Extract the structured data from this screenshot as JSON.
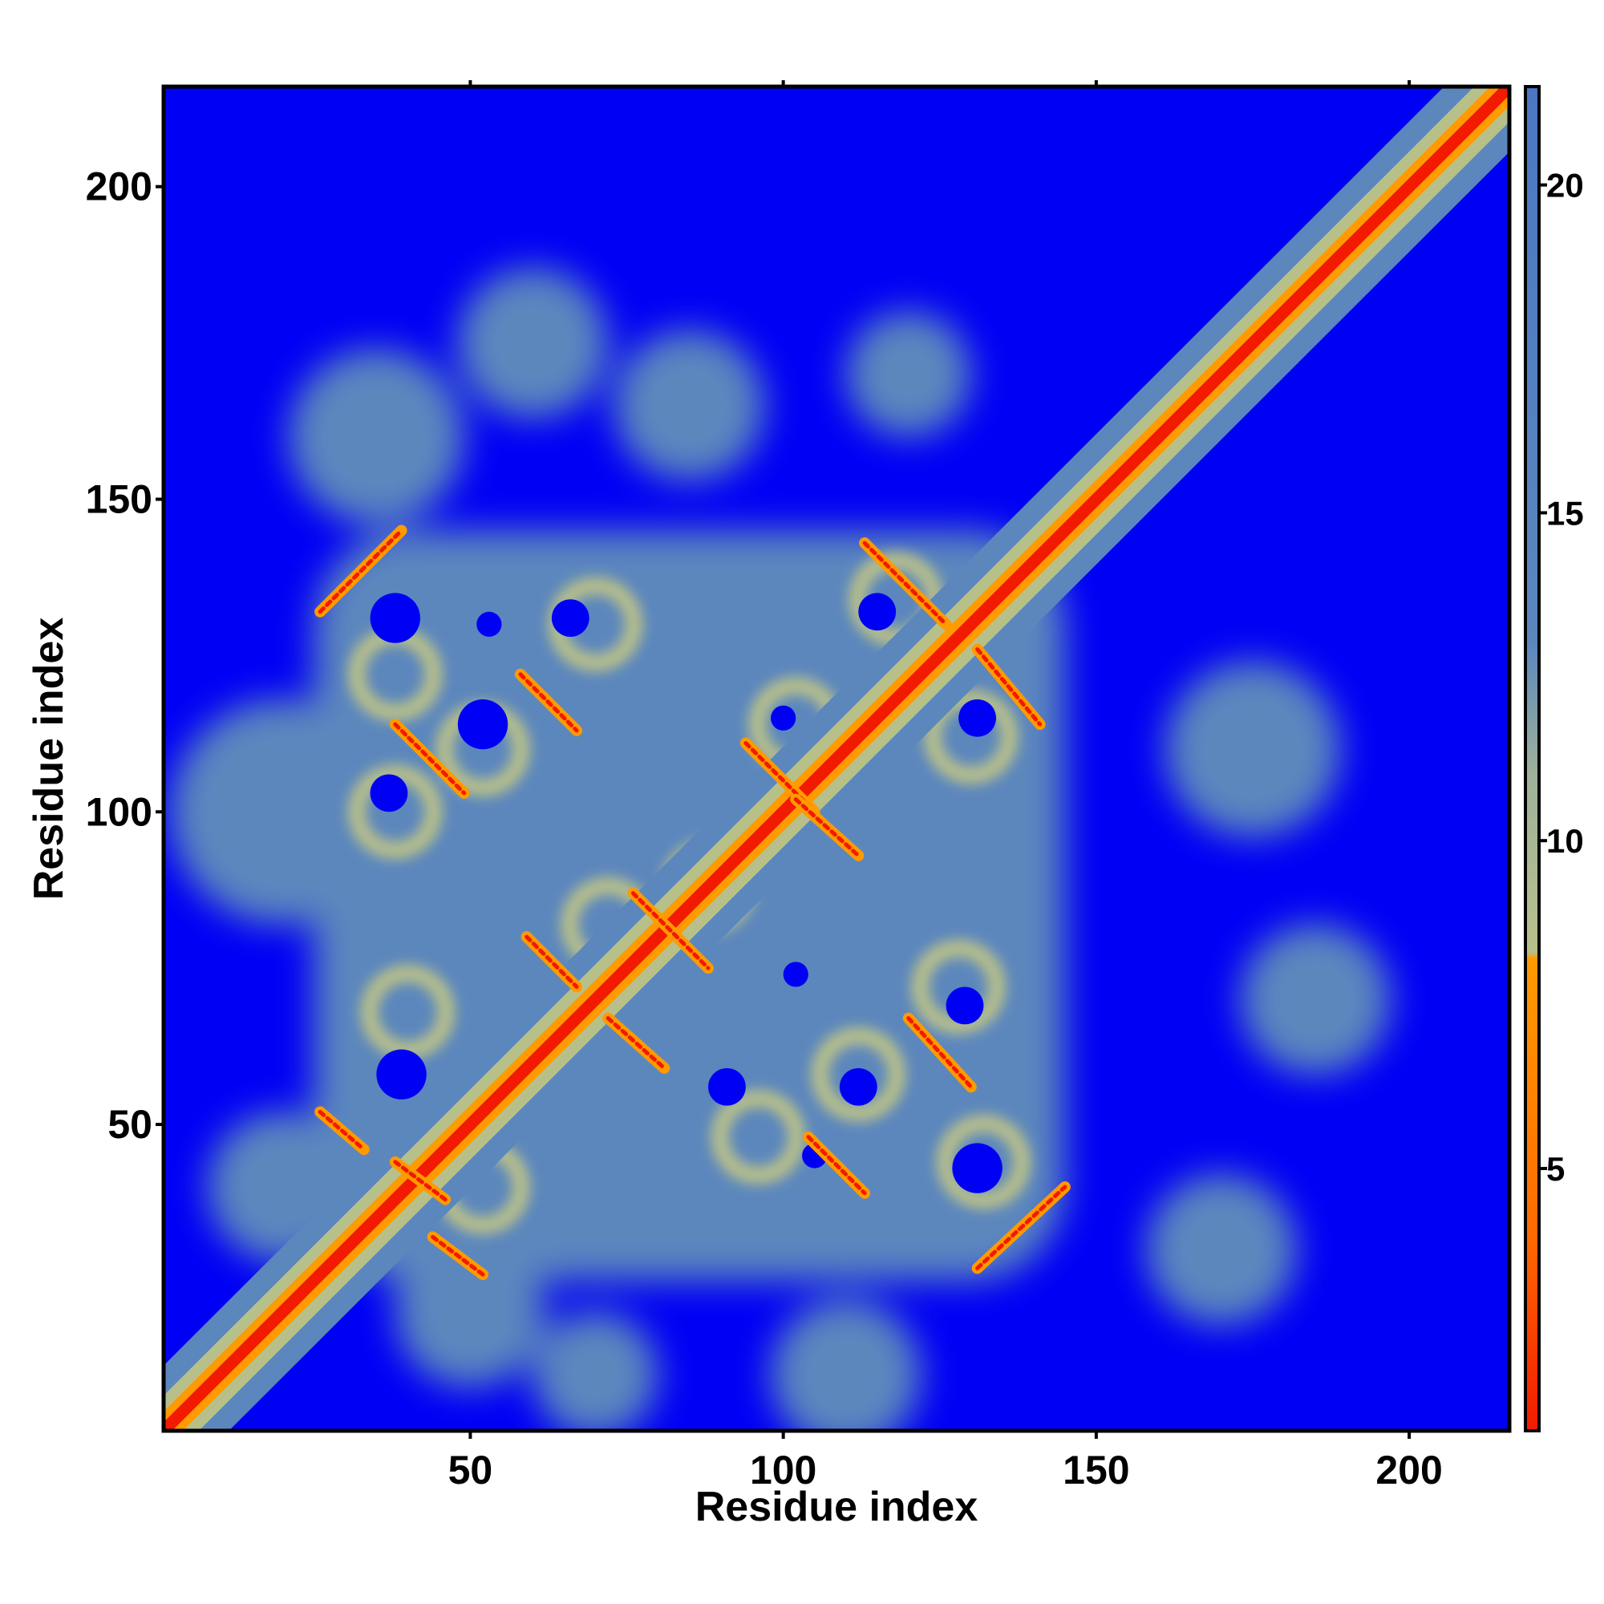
{
  "chart_data": {
    "type": "heatmap",
    "title": "",
    "xlabel": "Residue index",
    "ylabel": "Residue index",
    "xlim": [
      1,
      216
    ],
    "ylim": [
      1,
      216
    ],
    "xticks": [
      50,
      100,
      150,
      200
    ],
    "yticks": [
      50,
      100,
      150,
      200
    ],
    "colorbar": {
      "range": [
        1,
        21.5
      ],
      "ticks": [
        5,
        10,
        15,
        20
      ],
      "colors": {
        "far": "#0000f5",
        "medium": "#5b87bd",
        "near": "#b8c08a",
        "close": "#ff9a00",
        "contact": "#f21a00"
      },
      "stops": [
        {
          "value": 1,
          "color": "#f21a00"
        },
        {
          "value": 4,
          "color": "#ff6a00"
        },
        {
          "value": 8.2,
          "color": "#ff9a00"
        },
        {
          "value": 8.3,
          "color": "#b8c08a"
        },
        {
          "value": 11,
          "color": "#9fb29a"
        },
        {
          "value": 13,
          "color": "#5b87bd"
        },
        {
          "value": 21.5,
          "color": "#4a78c2"
        }
      ]
    },
    "diagonal_band": {
      "from": 1,
      "to": 216
    },
    "helix_core": {
      "from": 25,
      "to": 145
    },
    "contact_segments": [
      {
        "x1": 26,
        "y1": 132,
        "x2": 39,
        "y2": 145
      },
      {
        "x1": 38,
        "y1": 114,
        "x2": 49,
        "y2": 103
      },
      {
        "x1": 58,
        "y1": 122,
        "x2": 67,
        "y2": 113
      },
      {
        "x1": 59,
        "y1": 80,
        "x2": 67,
        "y2": 72
      },
      {
        "x1": 72,
        "y1": 67,
        "x2": 81,
        "y2": 59
      },
      {
        "x1": 76,
        "y1": 87,
        "x2": 88,
        "y2": 75
      },
      {
        "x1": 94,
        "y1": 111,
        "x2": 105,
        "y2": 100
      },
      {
        "x1": 102,
        "y1": 102,
        "x2": 112,
        "y2": 93
      },
      {
        "x1": 113,
        "y1": 143,
        "x2": 126,
        "y2": 130
      },
      {
        "x1": 131,
        "y1": 126,
        "x2": 141,
        "y2": 114
      },
      {
        "x1": 104,
        "y1": 48,
        "x2": 113,
        "y2": 39
      },
      {
        "x1": 120,
        "y1": 67,
        "x2": 130,
        "y2": 56
      },
      {
        "x1": 131,
        "y1": 27,
        "x2": 145,
        "y2": 40
      },
      {
        "x1": 26,
        "y1": 52,
        "x2": 33,
        "y2": 46
      },
      {
        "x1": 44,
        "y1": 32,
        "x2": 52,
        "y2": 26
      },
      {
        "x1": 38,
        "y1": 44,
        "x2": 46,
        "y2": 38
      }
    ]
  }
}
